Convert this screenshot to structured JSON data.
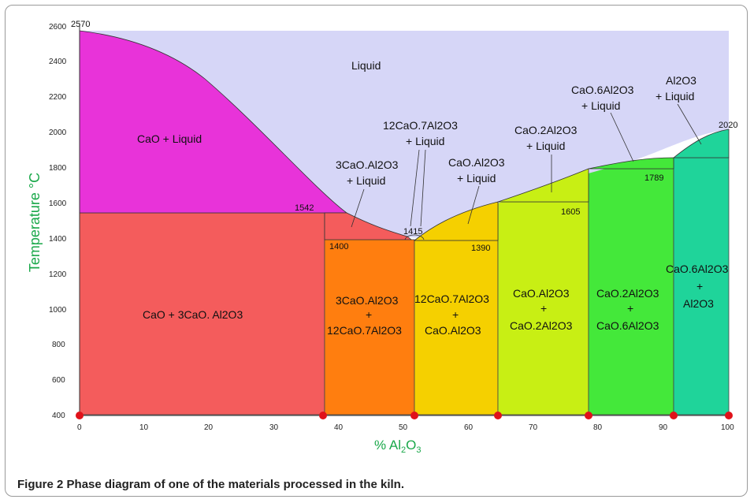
{
  "figure": {
    "caption_label": "Figure 2",
    "caption_text": "Phase diagram of one of the materials processed in the kiln."
  },
  "axes": {
    "ylabel": "Temperature °C",
    "xlabel_prefix": "% Al",
    "xlabel_sub": "2",
    "xlabel_suffix": "O",
    "xlabel_sub2": "3",
    "x_ticks": [
      0,
      10,
      20,
      30,
      40,
      50,
      60,
      70,
      80,
      90,
      100
    ],
    "y_ticks": [
      400,
      600,
      800,
      1000,
      1200,
      1400,
      1600,
      1800,
      2000,
      2200,
      2400,
      2600
    ],
    "axis_color": "#1aa84a"
  },
  "regions": {
    "liquid": "Liquid",
    "cao_liquid": "CaO + Liquid",
    "cao_c3a": "CaO + 3CaO. Al2O3",
    "c3a_c12a7_a": "3CaO.Al2O3",
    "c3a_c12a7_plus": "+",
    "c3a_c12a7_b": "12CaO.7Al2O3",
    "c12a7_ca_a": "12CaO.7Al2O3",
    "c12a7_ca_plus": "+",
    "c12a7_ca_b": "CaO.Al2O3",
    "ca_ca2_a": "CaO.Al2O3",
    "ca_ca2_plus": "+",
    "ca_ca2_b": "CaO.2Al2O3",
    "ca2_ca6_a": "CaO.2Al2O3",
    "ca2_ca6_plus": "+",
    "ca2_ca6_b": "CaO.6Al2O3",
    "ca6_a_a": "CaO.6Al2O3",
    "ca6_a_plus": "+",
    "ca6_a_b": "Al2O3",
    "c3a_liq_a": "3CaO.Al2O3",
    "c3a_liq_b": "+ Liquid",
    "c12a7_liq_a": "12CaO.7Al2O3",
    "c12a7_liq_b": "+ Liquid",
    "ca_liq_a": "CaO.Al2O3",
    "ca_liq_b": "+ Liquid",
    "ca2_liq_a": "CaO.2Al2O3",
    "ca2_liq_b": "+ Liquid",
    "ca6_liq_a": "CaO.6Al2O3",
    "ca6_liq_b": "+ Liquid",
    "a_liq_a": "Al2O3",
    "a_liq_b": "+ Liquid"
  },
  "temperatures": {
    "t2570": "2570",
    "t2020": "2020",
    "t1542": "1542",
    "t1415": "1415",
    "t1400": "1400",
    "t1390": "1390",
    "t1605": "1605",
    "t1789": "1789"
  },
  "colors": {
    "liquid": "#d6d6f7",
    "cao_liquid": "#e833d9",
    "cao_c3a": "#f45c5c",
    "c3a_c12a7": "#ff7e0f",
    "c12a7_ca": "#f5d000",
    "ca_ca2": "#c8ef14",
    "ca2_ca6": "#44e83a",
    "ca6_a": "#1fd49a",
    "marker": "#e0121a"
  }
}
